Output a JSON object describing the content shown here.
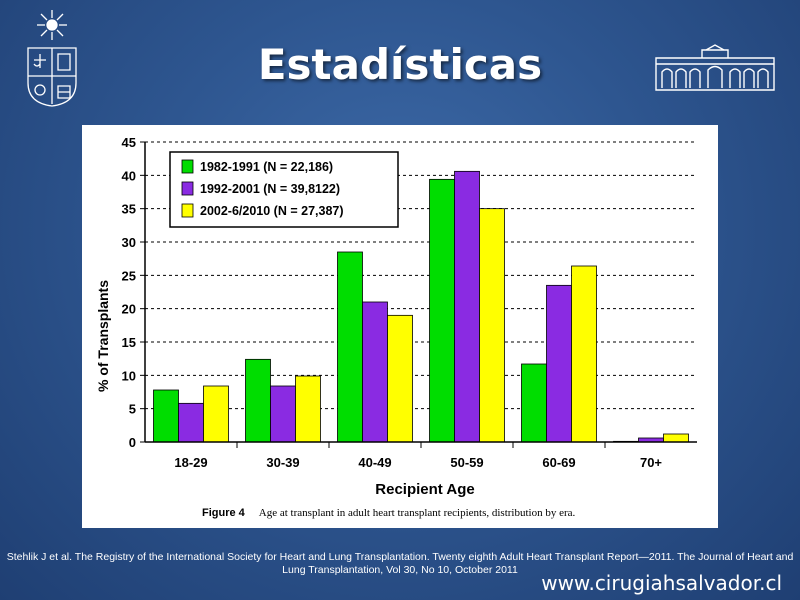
{
  "slide": {
    "title": "Estadísticas",
    "citation": "Stehlik J et al. The Registry of the International Society for Heart and Lung Transplantation. Twenty eighth Adult Heart Transplant Report—2011. The Journal of Heart and Lung Transplantation, Vol 30, No 10, October 2011",
    "website": "www.cirugiahsalvador.cl"
  },
  "figure": {
    "number": "Figure 4",
    "caption": "Age at transplant in adult heart transplant recipients, distribution by era."
  },
  "colors": {
    "background": "#2e5690",
    "series_1982_1991": "#00dd00",
    "series_1992_2001": "#8a2be2",
    "series_2002_2010": "#ffff00"
  },
  "chart_data": {
    "type": "bar",
    "title": "",
    "xlabel": "Recipient Age",
    "ylabel": "% of Transplants",
    "ylim": [
      0,
      45
    ],
    "yticks": [
      0,
      5,
      10,
      15,
      20,
      25,
      30,
      35,
      40,
      45
    ],
    "grid": "horizontal dashed",
    "legend_position": "top-left",
    "categories": [
      "18-29",
      "30-39",
      "40-49",
      "50-59",
      "60-69",
      "70+"
    ],
    "series": [
      {
        "name": "1982-1991 (N = 22,186)",
        "color": "#00dd00",
        "values": [
          7.8,
          12.4,
          28.5,
          39.4,
          11.7,
          0.1
        ]
      },
      {
        "name": "1992-2001 (N = 39,8122)",
        "color": "#8a2be2",
        "values": [
          5.8,
          8.4,
          21.0,
          40.6,
          23.5,
          0.6
        ]
      },
      {
        "name": "2002-6/2010 (N = 27,387)",
        "color": "#ffff00",
        "values": [
          8.4,
          9.9,
          19.0,
          35.0,
          26.4,
          1.2
        ]
      }
    ]
  }
}
